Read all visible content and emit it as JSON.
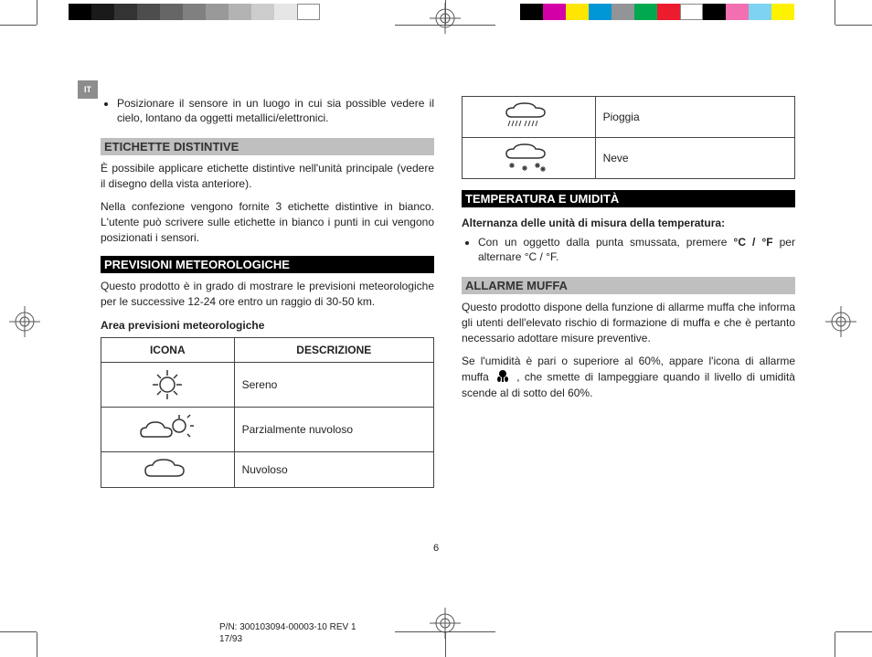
{
  "lang_tab": "IT",
  "color_swatches_left": [
    "#000000",
    "#1a1a1a",
    "#333333",
    "#4d4d4d",
    "#666666",
    "#808080",
    "#999999",
    "#b3b3b3",
    "#cccccc",
    "#e6e6e6",
    "#ffffff"
  ],
  "color_swatches_right": [
    "#000000",
    "#d400a7",
    "#ffe600",
    "#0097d6",
    "#929497",
    "#00a94f",
    "#ed1b2e",
    "#ffffff",
    "#000000",
    "#f26fb1",
    "#7ed3f2",
    "#fef200"
  ],
  "left_col": {
    "intro_bullet": "Posizionare il sensore in un luogo in cui sia possible vedere il cielo, lontano da oggetti metallici/elettronici.",
    "h_labels": {
      "text": "ETICHETTE DISTINTIVE",
      "style": "light"
    },
    "labels_p1": "È possibile applicare etichette distintive nell'unità principale (vedere il disegno della vista anteriore).",
    "labels_p2": "Nella confezione vengono fornite 3 etichette distintive in bianco. L'utente può scrivere sulle etichette in bianco i punti in cui vengono posizionati i sensori.",
    "h_forecast": {
      "text": "PREVISIONI METEOROLOGICHE",
      "style": "dark"
    },
    "forecast_p": "Questo prodotto è in grado di mostrare le previsioni meteorologiche per le successive 12-24 ore entro un raggio di 30-50 km.",
    "forecast_sub": "Area previsioni meteorologiche",
    "table_headers": [
      "ICONA",
      "DESCRIZIONE"
    ],
    "icons": [
      {
        "name": "sun",
        "desc": "Sereno"
      },
      {
        "name": "partly-cloudy",
        "desc": "Parzialmente nuvoloso"
      },
      {
        "name": "cloudy",
        "desc": "Nuvoloso"
      }
    ]
  },
  "right_col": {
    "icons_cont": [
      {
        "name": "rain",
        "desc": "Pioggia"
      },
      {
        "name": "snow",
        "desc": "Neve"
      }
    ],
    "h_temp": {
      "text": "TEMPERATURA E UMIDITÀ",
      "style": "dark"
    },
    "temp_sub": "Alternanza delle unità di misura della temperatura:",
    "temp_bullet_pre": "Con un oggetto dalla punta smussata, premere ",
    "temp_bullet_bold": "°C / °F",
    "temp_bullet_post": " per alternare °C / °F.",
    "h_mold": {
      "text": "ALLARME MUFFA",
      "style": "light"
    },
    "mold_p1": "Questo prodotto dispone della funzione di allarme muffa che informa gli utenti dell'elevato rischio di formazione di muffa e che è pertanto necessario adottare misure preventive.",
    "mold_p2_pre": "Se l'umidità è pari o superiore al 60%, appare l'icona di allarme muffa ",
    "mold_p2_post": " , che smette di lampeggiare quando il livello di umidità scende al di sotto del 60%."
  },
  "page_number": "6",
  "footer_pn": "P/N: 300103094-00003-10 REV 1",
  "footer_page": "17/93",
  "registration_mark": {
    "stroke": "#555555",
    "fill": "#ffffff"
  }
}
